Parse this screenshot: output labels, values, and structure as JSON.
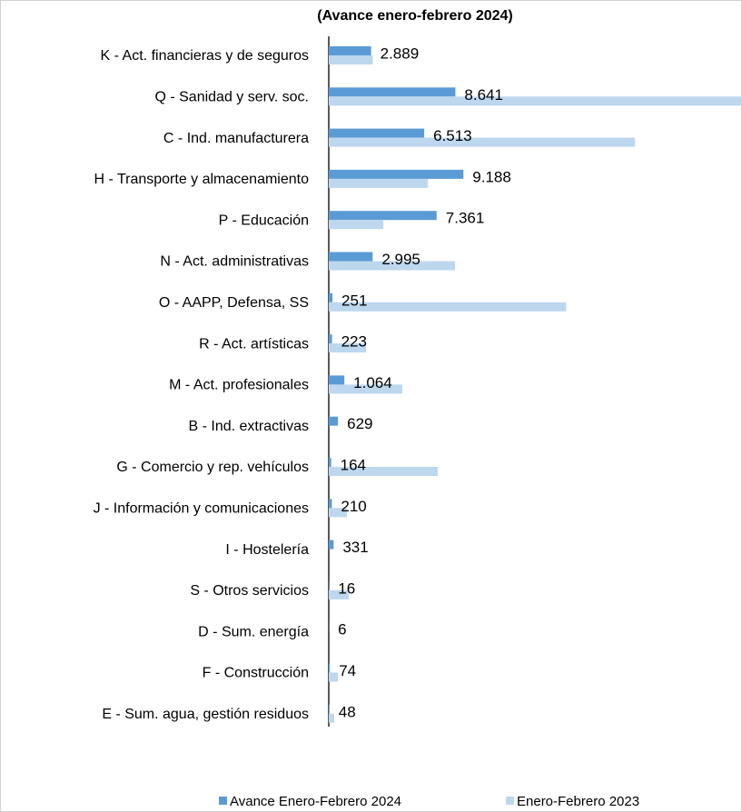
{
  "chart_data": {
    "type": "bar",
    "orientation": "horizontal",
    "title": "(Avance enero-febrero 2024)",
    "categories": [
      "K - Act. financieras y de seguros",
      "Q - Sanidad y serv. soc.",
      "C - Ind. manufacturera",
      "H - Transporte y almacenamiento",
      "P - Educación",
      "N - Act. administrativas",
      "O - AAPP, Defensa, SS",
      "R - Act. artísticas",
      "M - Act. profesionales",
      "B - Ind. extractivas",
      "G - Comercio y rep. vehículos",
      "J - Información y comunicaciones",
      "I - Hostelería",
      "S - Otros servicios",
      "D - Sum. energía",
      "F - Construcción",
      "E - Sum. agua, gestión residuos"
    ],
    "series": [
      {
        "name": "Avance Enero-Febrero 2024",
        "color": "#5b9bd5",
        "values": [
          2889,
          8641,
          6513,
          9188,
          7361,
          2995,
          251,
          223,
          1064,
          629,
          164,
          210,
          331,
          16,
          6,
          74,
          48
        ],
        "value_labels": [
          "2.889",
          "8.641",
          "6.513",
          "9.188",
          "7.361",
          "2.995",
          "251",
          "223",
          "1.064",
          "629",
          "164",
          "210",
          "331",
          "16",
          "6",
          "74",
          "48"
        ]
      },
      {
        "name": "Enero-Febrero 2023",
        "color": "#bdd7ee",
        "values": [
          3000,
          28200,
          20900,
          6760,
          3720,
          8620,
          16200,
          2540,
          5020,
          0,
          7440,
          1240,
          0,
          1360,
          0,
          620,
          370
        ]
      }
    ],
    "legend": "bottom"
  }
}
